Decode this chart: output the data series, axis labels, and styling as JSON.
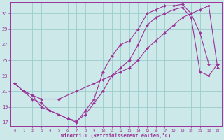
{
  "xlabel": "Windchill (Refroidissement éolien,°C)",
  "xlim": [
    -0.5,
    23.5
  ],
  "ylim": [
    16.5,
    32.5
  ],
  "yticks": [
    17,
    19,
    21,
    23,
    25,
    27,
    29,
    31
  ],
  "xticks": [
    0,
    1,
    2,
    3,
    4,
    5,
    6,
    7,
    8,
    9,
    10,
    11,
    12,
    13,
    14,
    15,
    16,
    17,
    18,
    19,
    20,
    21,
    22,
    23
  ],
  "background_color": "#cce8e8",
  "grid_color": "#99cccc",
  "line_color": "#993399",
  "line1_x": [
    0,
    1,
    2,
    3,
    4,
    5,
    6,
    7,
    8,
    9,
    10,
    11,
    12,
    13,
    14,
    15,
    16,
    17,
    18,
    19,
    20,
    21,
    22,
    23
  ],
  "line1_y": [
    22.0,
    21.0,
    20.5,
    19.0,
    18.5,
    18.0,
    17.5,
    17.0,
    18.5,
    20.0,
    23.5,
    25.5,
    27.0,
    27.5,
    29.0,
    31.0,
    31.5,
    32.0,
    32.0,
    32.2,
    31.0,
    28.5,
    24.5,
    24.5
  ],
  "line2_x": [
    0,
    1,
    3,
    5,
    7,
    9,
    10,
    11,
    12,
    13,
    14,
    15,
    16,
    17,
    18,
    19,
    20,
    21,
    22,
    23
  ],
  "line2_y": [
    22.0,
    21.0,
    20.0,
    20.0,
    21.0,
    22.0,
    22.5,
    23.0,
    23.5,
    24.0,
    25.0,
    26.5,
    27.5,
    28.5,
    29.5,
    30.5,
    31.0,
    31.5,
    32.0,
    24.0
  ],
  "line3_x": [
    0,
    1,
    2,
    3,
    4,
    5,
    6,
    7,
    8,
    9,
    10,
    11,
    12,
    13,
    14,
    15,
    16,
    17,
    18,
    19,
    20,
    21,
    22,
    23
  ],
  "line3_y": [
    22.0,
    21.0,
    20.0,
    19.5,
    18.5,
    18.0,
    17.5,
    17.2,
    18.0,
    19.5,
    21.0,
    23.0,
    24.0,
    25.0,
    27.0,
    29.5,
    30.5,
    31.0,
    31.5,
    31.8,
    30.5,
    23.5,
    23.0,
    24.5
  ]
}
